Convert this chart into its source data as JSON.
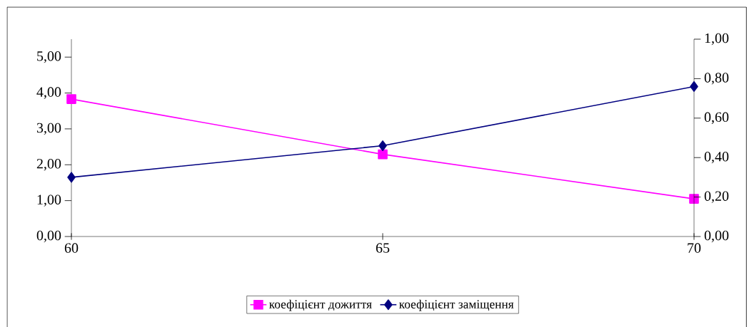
{
  "chart_data": {
    "type": "line",
    "x": [
      60,
      65,
      70
    ],
    "xlim": [
      60,
      70
    ],
    "xticks": [
      60,
      65,
      70
    ],
    "ylim": [
      0,
      5.5
    ],
    "yticks": [
      {
        "value": 0,
        "label": "0,00"
      },
      {
        "value": 1,
        "label": "1,00"
      },
      {
        "value": 2,
        "label": "2,00"
      },
      {
        "value": 3,
        "label": "3,00"
      },
      {
        "value": 4,
        "label": "4,00"
      },
      {
        "value": 5,
        "label": "5,00"
      }
    ],
    "y2lim": [
      0,
      1
    ],
    "y2ticks": [
      {
        "value": 0,
        "label": "0,00"
      },
      {
        "value": 0.2,
        "label": "0,20"
      },
      {
        "value": 0.4,
        "label": "0,40"
      },
      {
        "value": 0.6,
        "label": "0,60"
      },
      {
        "value": 0.8,
        "label": "0,80"
      },
      {
        "value": 1,
        "label": "1,00"
      }
    ],
    "series": [
      {
        "name": "коефіцієнт дожиття",
        "color": "#ff00ff",
        "values": [
          3.83,
          2.29,
          1.05
        ],
        "marker": "square"
      },
      {
        "name": "коефіцієнт заміщення",
        "color": "#000080",
        "values": [
          0.3,
          0.46,
          0.76
        ],
        "marker": "diamond",
        "axis": "y2"
      }
    ],
    "legend": "bottom",
    "grid": false,
    "line_style": "solid"
  }
}
